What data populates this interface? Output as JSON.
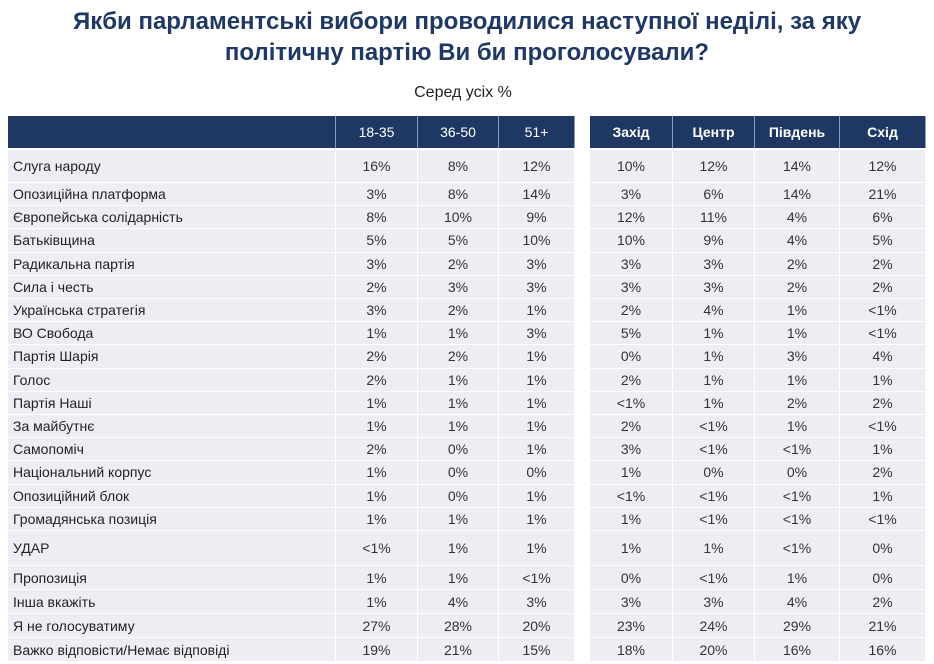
{
  "title": "Якби парламентські вибори проводилися наступної неділі, за яку\nполітичну партію Ви би проголосували?",
  "subtitle": "Серед усіх %",
  "table": {
    "header": [
      "18-35",
      "36-50",
      "51+",
      "Захід",
      "Центр",
      "Південь",
      "Схід"
    ],
    "rows": [
      [
        "Слуга народу",
        "16%",
        "8%",
        "12%",
        "10%",
        "12%",
        "14%",
        "12%"
      ],
      [
        "Опозиційна платформа",
        "3%",
        "8%",
        "14%",
        "3%",
        "6%",
        "14%",
        "21%"
      ],
      [
        "Європейська солідарність",
        "8%",
        "10%",
        "9%",
        "12%",
        "11%",
        "4%",
        "6%"
      ],
      [
        "Батьківщина",
        "5%",
        "5%",
        "10%",
        "10%",
        "9%",
        "4%",
        "5%"
      ],
      [
        "Радикальна партія",
        "3%",
        "2%",
        "3%",
        "3%",
        "3%",
        "2%",
        "2%"
      ],
      [
        "Сила і честь",
        "2%",
        "3%",
        "3%",
        "3%",
        "3%",
        "2%",
        "2%"
      ],
      [
        "Українська стратегія",
        "3%",
        "2%",
        "1%",
        "2%",
        "4%",
        "1%",
        "<1%"
      ],
      [
        "ВО Свобода",
        "1%",
        "1%",
        "3%",
        "5%",
        "1%",
        "1%",
        "<1%"
      ],
      [
        "Партія Шарія",
        "2%",
        "2%",
        "1%",
        "0%",
        "1%",
        "3%",
        "4%"
      ],
      [
        "Голос",
        "2%",
        "1%",
        "1%",
        "2%",
        "1%",
        "1%",
        "1%"
      ],
      [
        "Партія Наші",
        "1%",
        "1%",
        "1%",
        "<1%",
        "1%",
        "2%",
        "2%"
      ],
      [
        "За майбутнє",
        "1%",
        "1%",
        "1%",
        "2%",
        "<1%",
        "1%",
        "<1%"
      ],
      [
        "Самопоміч",
        "2%",
        "0%",
        "1%",
        "3%",
        "<1%",
        "<1%",
        "1%"
      ],
      [
        "Національний корпус",
        "1%",
        "0%",
        "0%",
        "1%",
        "0%",
        "0%",
        "2%"
      ],
      [
        "Опозиційний блок",
        "1%",
        "0%",
        "1%",
        "<1%",
        "<1%",
        "<1%",
        "1%"
      ],
      [
        "Громадянська позиція",
        "1%",
        "1%",
        "1%",
        "1%",
        "<1%",
        "<1%",
        "<1%"
      ],
      [
        "УДАР",
        "<1%",
        "1%",
        "1%",
        "1%",
        "1%",
        "<1%",
        "0%"
      ],
      [
        "Пропозиція",
        "1%",
        "1%",
        "<1%",
        "0%",
        "<1%",
        "1%",
        "0%"
      ],
      [
        "Інша вкажіть",
        "1%",
        "4%",
        "3%",
        "3%",
        "3%",
        "4%",
        "2%"
      ],
      [
        "Я не голосуватиму",
        "27%",
        "28%",
        "20%",
        "23%",
        "24%",
        "29%",
        "21%"
      ],
      [
        "Важко відповісти/Немає відповіді",
        "19%",
        "21%",
        "15%",
        "18%",
        "20%",
        "16%",
        "16%"
      ]
    ]
  }
}
